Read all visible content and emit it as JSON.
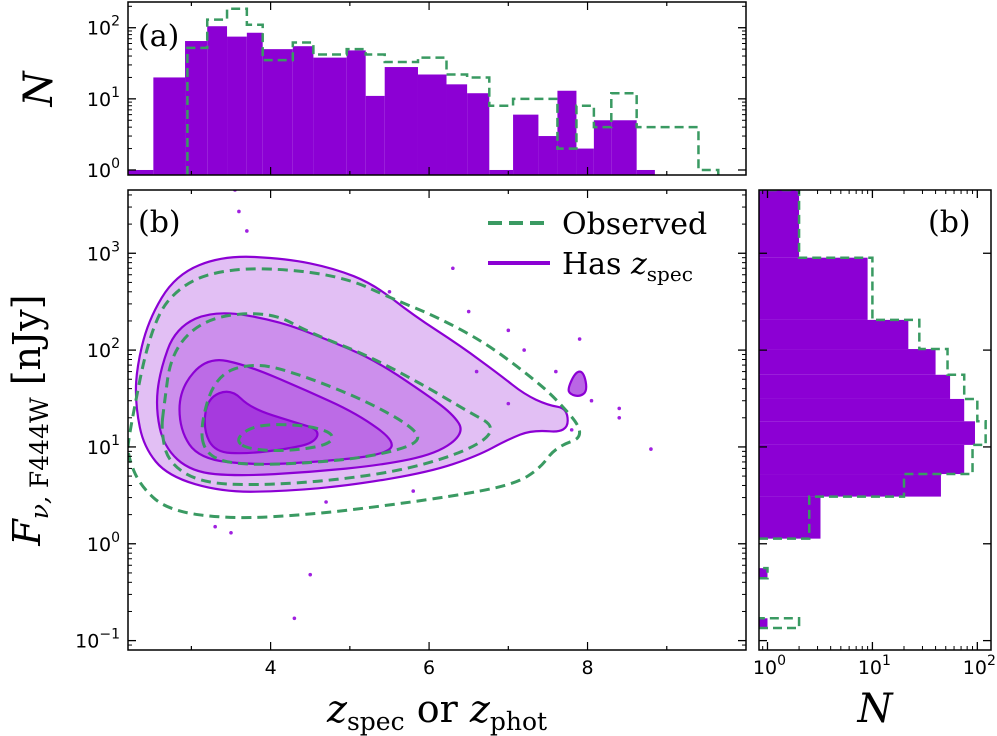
{
  "chart_data": [
    {
      "type": "histogram",
      "panel": "top",
      "panel_label": "(a)",
      "ylabel": "N",
      "xlim": [
        2.2,
        10.0
      ],
      "ylim": [
        0.85,
        230
      ],
      "yscale": "log",
      "yticks": [
        {
          "value": 1,
          "base": "10",
          "exp": "0"
        },
        {
          "value": 10,
          "base": "10",
          "exp": "1"
        },
        {
          "value": 100,
          "base": "10",
          "exp": "2"
        }
      ],
      "bin_edges": [
        2.2,
        2.52,
        2.92,
        3.2,
        3.45,
        3.7,
        3.9,
        4.28,
        4.54,
        4.96,
        5.2,
        5.44,
        5.86,
        6.22,
        6.48,
        6.76,
        7.06,
        7.38,
        7.62,
        7.86,
        8.08,
        8.3,
        8.62,
        8.85
      ],
      "series": [
        {
          "name": "Has z_spec",
          "style": "filled",
          "color": "#8c00d4",
          "values": [
            1,
            20,
            65,
            105,
            75,
            85,
            50,
            55,
            38,
            48,
            11,
            28,
            22,
            16,
            12,
            1,
            6,
            3,
            13,
            2,
            5,
            5,
            1
          ]
        }
      ],
      "observed_steps": {
        "name": "Observed",
        "style": "dashed",
        "color": "#3a9a62",
        "edges": [
          2.95,
          3.2,
          3.45,
          3.7,
          3.9,
          4.28,
          4.54,
          4.96,
          5.2,
          5.44,
          5.86,
          6.22,
          6.48,
          6.76,
          7.06,
          7.38,
          7.62,
          7.86,
          8.08,
          8.3,
          8.62,
          9.4,
          9.65
        ],
        "values": [
          52,
          130,
          185,
          110,
          35,
          62,
          42,
          50,
          42,
          33,
          38,
          22,
          20,
          8,
          10,
          10,
          2,
          8,
          4,
          12,
          4,
          1
        ]
      }
    },
    {
      "type": "contour",
      "panel": "main",
      "panel_label": "(b)",
      "xlabel": "z_spec or z_phot",
      "ylabel": "F_nu, F444W [nJy]",
      "xlim": [
        2.2,
        10.0
      ],
      "ylim": [
        0.08,
        4500
      ],
      "yscale": "log",
      "xticks": [
        4,
        6,
        8
      ],
      "yticks": [
        {
          "value": 0.1,
          "base": "10",
          "exp": "−1"
        },
        {
          "value": 1,
          "base": "10",
          "exp": "0"
        },
        {
          "value": 10,
          "base": "10",
          "exp": "1"
        },
        {
          "value": 100,
          "base": "10",
          "exp": "2"
        },
        {
          "value": 1000,
          "base": "10",
          "exp": "3"
        }
      ],
      "legend": {
        "placement": "upper right",
        "entries": [
          {
            "label": "Observed",
            "style": "dashed",
            "color": "#3a9a62"
          },
          {
            "label_main": "Has ",
            "label_var": "z",
            "label_sub": "spec",
            "style": "solid",
            "color": "#8c00d4"
          }
        ]
      },
      "filled_levels": [
        {
          "alpha": 0.25,
          "points": [
            [
              2.3,
              60
            ],
            [
              2.45,
              200
            ],
            [
              2.8,
              600
            ],
            [
              3.4,
              950
            ],
            [
              4.2,
              880
            ],
            [
              4.8,
              700
            ],
            [
              5.3,
              480
            ],
            [
              5.8,
              230
            ],
            [
              6.4,
              110
            ],
            [
              6.9,
              55
            ],
            [
              7.2,
              35
            ],
            [
              7.5,
              27
            ],
            [
              7.75,
              25
            ],
            [
              7.75,
              14
            ],
            [
              7.3,
              15
            ],
            [
              7,
              12
            ],
            [
              6.6,
              8
            ],
            [
              6,
              5.5
            ],
            [
              5,
              4
            ],
            [
              4.2,
              3.5
            ],
            [
              3.4,
              3.4
            ],
            [
              2.7,
              5
            ],
            [
              2.4,
              10
            ],
            [
              2.3,
              25
            ]
          ]
        },
        {
          "alpha": 0.25,
          "points": [
            [
              2.6,
              60
            ],
            [
              2.8,
              170
            ],
            [
              3.3,
              260
            ],
            [
              4.1,
              200
            ],
            [
              4.7,
              130
            ],
            [
              5.3,
              80
            ],
            [
              5.9,
              38
            ],
            [
              6.3,
              22
            ],
            [
              6.45,
              14
            ],
            [
              6.1,
              8.5
            ],
            [
              5.4,
              6.5
            ],
            [
              4.5,
              5.5
            ],
            [
              3.6,
              5
            ],
            [
              3,
              5.5
            ],
            [
              2.65,
              10
            ],
            [
              2.55,
              25
            ]
          ]
        },
        {
          "alpha": 0.25,
          "points": [
            [
              2.85,
              40
            ],
            [
              3.2,
              85
            ],
            [
              3.7,
              70
            ],
            [
              4.4,
              40
            ],
            [
              5.1,
              22
            ],
            [
              5.6,
              11
            ],
            [
              5.4,
              8.2
            ],
            [
              4.6,
              7
            ],
            [
              3.8,
              6.5
            ],
            [
              3.1,
              7.5
            ],
            [
              2.85,
              15
            ]
          ]
        },
        {
          "alpha": 0.45,
          "points": [
            [
              3.2,
              32
            ],
            [
              3.5,
              40
            ],
            [
              3.75,
              25
            ],
            [
              4.3,
              18
            ],
            [
              4.62,
              15
            ],
            [
              4.55,
              11
            ],
            [
              4.2,
              9.5
            ],
            [
              3.7,
              8.5
            ],
            [
              3.3,
              8.8
            ],
            [
              3.15,
              15
            ]
          ]
        },
        {
          "alpha": 0.6,
          "points": [
            [
              7.75,
              40
            ],
            [
              7.85,
              60
            ],
            [
              7.95,
              60
            ],
            [
              8,
              38
            ],
            [
              7.9,
              33
            ],
            [
              7.78,
              35
            ]
          ]
        }
      ],
      "solid_contours": [
        [
          [
            2.3,
            60
          ],
          [
            2.45,
            200
          ],
          [
            2.8,
            600
          ],
          [
            3.4,
            950
          ],
          [
            4.2,
            880
          ],
          [
            4.8,
            700
          ],
          [
            5.3,
            480
          ],
          [
            5.8,
            230
          ],
          [
            6.4,
            110
          ],
          [
            6.9,
            55
          ],
          [
            7.2,
            35
          ],
          [
            7.5,
            27
          ],
          [
            7.75,
            25
          ],
          [
            7.75,
            14
          ],
          [
            7.3,
            15
          ],
          [
            7,
            12
          ],
          [
            6.6,
            8
          ],
          [
            6,
            5.5
          ],
          [
            5,
            4
          ],
          [
            4.2,
            3.5
          ],
          [
            3.4,
            3.4
          ],
          [
            2.7,
            5
          ],
          [
            2.4,
            10
          ],
          [
            2.3,
            25
          ]
        ],
        [
          [
            2.6,
            60
          ],
          [
            2.8,
            170
          ],
          [
            3.3,
            260
          ],
          [
            4.1,
            200
          ],
          [
            4.7,
            130
          ],
          [
            5.3,
            80
          ],
          [
            5.9,
            38
          ],
          [
            6.3,
            22
          ],
          [
            6.45,
            14
          ],
          [
            6.1,
            8.5
          ],
          [
            5.4,
            6.5
          ],
          [
            4.5,
            5.5
          ],
          [
            3.6,
            5
          ],
          [
            3,
            5.5
          ],
          [
            2.65,
            10
          ],
          [
            2.55,
            25
          ]
        ],
        [
          [
            2.85,
            40
          ],
          [
            3.2,
            85
          ],
          [
            3.7,
            70
          ],
          [
            4.4,
            40
          ],
          [
            5.1,
            22
          ],
          [
            5.6,
            11
          ],
          [
            5.4,
            8.2
          ],
          [
            4.6,
            7
          ],
          [
            3.8,
            6.5
          ],
          [
            3.1,
            7.5
          ],
          [
            2.85,
            15
          ]
        ],
        [
          [
            3.2,
            32
          ],
          [
            3.5,
            40
          ],
          [
            3.75,
            25
          ],
          [
            4.3,
            18
          ],
          [
            4.62,
            15
          ],
          [
            4.55,
            11
          ],
          [
            4.2,
            9.5
          ],
          [
            3.7,
            8.5
          ],
          [
            3.3,
            8.8
          ],
          [
            3.15,
            15
          ]
        ],
        [
          [
            7.75,
            40
          ],
          [
            7.85,
            60
          ],
          [
            7.95,
            60
          ],
          [
            8,
            38
          ],
          [
            7.9,
            33
          ],
          [
            7.78,
            35
          ]
        ]
      ],
      "dashed_contours": [
        [
          [
            2.2,
            12
          ],
          [
            2.5,
            200
          ],
          [
            2.9,
            500
          ],
          [
            3.5,
            700
          ],
          [
            4.3,
            680
          ],
          [
            5,
            540
          ],
          [
            5.5,
            350
          ],
          [
            6.1,
            220
          ],
          [
            6.7,
            120
          ],
          [
            7.2,
            60
          ],
          [
            7.6,
            32
          ],
          [
            8,
            13
          ],
          [
            7.6,
            10
          ],
          [
            7.4,
            6
          ],
          [
            7.1,
            4.2
          ],
          [
            6.5,
            3.3
          ],
          [
            5.5,
            2.5
          ],
          [
            4.5,
            2
          ],
          [
            3.5,
            1.8
          ],
          [
            2.7,
            2.2
          ],
          [
            2.35,
            4
          ],
          [
            2.2,
            8
          ]
        ],
        [
          [
            2.65,
            25
          ],
          [
            2.75,
            100
          ],
          [
            3.2,
            220
          ],
          [
            4,
            250
          ],
          [
            4.5,
            150
          ],
          [
            5.2,
            90
          ],
          [
            5.9,
            45
          ],
          [
            6.5,
            23
          ],
          [
            6.85,
            16
          ],
          [
            6.6,
            10
          ],
          [
            5.8,
            6
          ],
          [
            4.8,
            4.5
          ],
          [
            3.8,
            4
          ],
          [
            3.1,
            4.3
          ],
          [
            2.7,
            7
          ],
          [
            2.62,
            15
          ]
        ],
        [
          [
            3.1,
            15
          ],
          [
            3.3,
            55
          ],
          [
            3.8,
            75
          ],
          [
            4.4,
            55
          ],
          [
            5.2,
            30
          ],
          [
            5.8,
            16
          ],
          [
            5.9,
            11
          ],
          [
            5.3,
            8
          ],
          [
            4.5,
            6.8
          ],
          [
            3.6,
            6.5
          ],
          [
            3.2,
            8
          ]
        ],
        [
          [
            3.55,
            12
          ],
          [
            3.8,
            17
          ],
          [
            4.4,
            17
          ],
          [
            4.8,
            14
          ],
          [
            4.75,
            10.5
          ],
          [
            4.2,
            9
          ],
          [
            3.7,
            9.5
          ]
        ]
      ],
      "scatter_points": [
        [
          3.6,
          2700
        ],
        [
          3.7,
          1700
        ],
        [
          3.55,
          4500
        ],
        [
          7.2,
          100
        ],
        [
          7.8,
          15
        ],
        [
          8.05,
          30
        ],
        [
          8.8,
          9.5
        ],
        [
          3.5,
          1.3
        ],
        [
          4.5,
          0.48
        ],
        [
          4.3,
          0.17
        ],
        [
          5.8,
          3.5
        ],
        [
          7.9,
          130
        ],
        [
          6.6,
          60
        ],
        [
          7.0,
          28
        ],
        [
          8.4,
          25
        ],
        [
          5.5,
          400
        ],
        [
          4.7,
          2.7
        ],
        [
          6.3,
          700
        ],
        [
          6.5,
          250
        ],
        [
          7.0,
          160
        ],
        [
          7.6,
          60
        ],
        [
          8.4,
          20
        ],
        [
          3.3,
          1.5
        ]
      ]
    },
    {
      "type": "histogram",
      "orientation": "horizontal",
      "panel": "right",
      "panel_label": "(b)",
      "xlabel": "N",
      "xscale": "log",
      "xlim": [
        0.83,
        135
      ],
      "xticks": [
        {
          "value": 1,
          "base": "10",
          "exp": "0"
        },
        {
          "value": 10,
          "base": "10",
          "exp": "1"
        },
        {
          "value": 100,
          "base": "10",
          "exp": "2"
        }
      ],
      "bin_edges": [
        0.135,
        0.17,
        0.44,
        0.56,
        1.13,
        3.07,
        5.25,
        10.5,
        18.4,
        31.3,
        55.6,
        102.5,
        205,
        900,
        4500
      ],
      "series": [
        {
          "name": "Has z_spec",
          "style": "filled",
          "color": "#8c00d4",
          "values": [
            1,
            0,
            1,
            0,
            3.2,
            45,
            75,
            95,
            75,
            55,
            40,
            22,
            9,
            2
          ]
        }
      ],
      "observed_steps": {
        "name": "Observed",
        "style": "dashed",
        "color": "#3a9a62",
        "values": [
          2,
          0,
          1,
          0,
          2.5,
          20,
          90,
          120,
          100,
          75,
          52,
          28,
          10,
          2
        ]
      }
    }
  ]
}
